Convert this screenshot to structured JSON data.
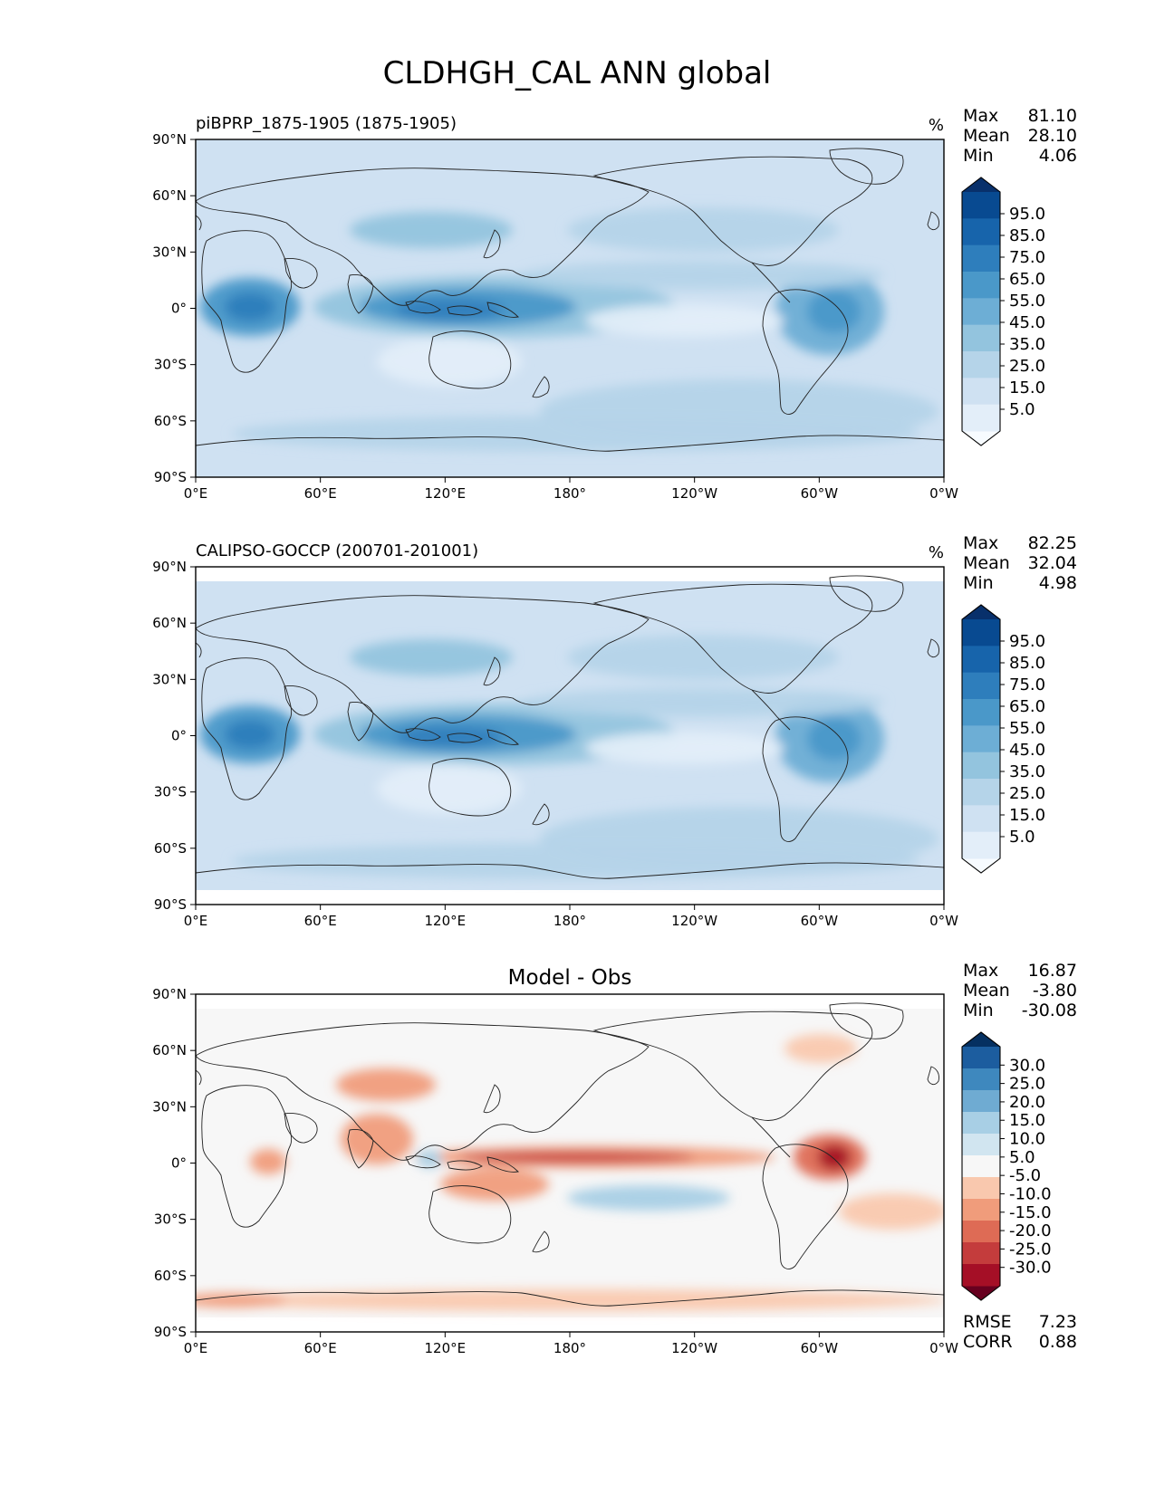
{
  "figure": {
    "title": "CLDHGH_CAL ANN global"
  },
  "chart_data": [
    {
      "type": "heatmap",
      "panel": "test",
      "title_left": "piBPRP_1875-1905 (1875-1905)",
      "units": "%",
      "stats": [
        {
          "label": "Max",
          "value": "81.10"
        },
        {
          "label": "Mean",
          "value": "28.10"
        },
        {
          "label": "Min",
          "value": "4.06"
        }
      ],
      "colormap": "Blues",
      "levels": [
        0,
        5,
        15,
        25,
        35,
        45,
        55,
        65,
        75,
        85,
        95,
        100
      ],
      "colorbar_labels": [
        "95.0",
        "85.0",
        "75.0",
        "65.0",
        "55.0",
        "45.0",
        "35.0",
        "25.0",
        "15.0",
        "5.0"
      ],
      "colors": [
        "#f7fbff",
        "#e3eef9",
        "#cfe1f2",
        "#b5d4e9",
        "#93c4de",
        "#6daed5",
        "#4a98c9",
        "#2e7ebc",
        "#1764ab",
        "#084a91",
        "#08306b"
      ],
      "x_ticks": [
        "0°E",
        "60°E",
        "120°E",
        "180°",
        "120°W",
        "60°W",
        "0°W"
      ],
      "y_ticks": [
        "90°N",
        "60°N",
        "30°N",
        "0°",
        "30°S",
        "60°S",
        "90°S"
      ]
    },
    {
      "type": "heatmap",
      "panel": "reference",
      "title_left": "CALIPSO-GOCCP (200701-201001)",
      "units": "%",
      "stats": [
        {
          "label": "Max",
          "value": "82.25"
        },
        {
          "label": "Mean",
          "value": "32.04"
        },
        {
          "label": "Min",
          "value": "4.98"
        }
      ],
      "colormap": "Blues",
      "levels": [
        0,
        5,
        15,
        25,
        35,
        45,
        55,
        65,
        75,
        85,
        95,
        100
      ],
      "colorbar_labels": [
        "95.0",
        "85.0",
        "75.0",
        "65.0",
        "55.0",
        "45.0",
        "35.0",
        "25.0",
        "15.0",
        "5.0"
      ],
      "colors": [
        "#f7fbff",
        "#e3eef9",
        "#cfe1f2",
        "#b5d4e9",
        "#93c4de",
        "#6daed5",
        "#4a98c9",
        "#2e7ebc",
        "#1764ab",
        "#084a91",
        "#08306b"
      ],
      "x_ticks": [
        "0°E",
        "60°E",
        "120°E",
        "180°",
        "120°W",
        "60°W",
        "0°W"
      ],
      "y_ticks": [
        "90°N",
        "60°N",
        "30°N",
        "0°",
        "30°S",
        "60°S",
        "90°S"
      ]
    },
    {
      "type": "heatmap",
      "panel": "difference",
      "title_center": "Model - Obs",
      "stats": [
        {
          "label": "Max",
          "value": "16.87"
        },
        {
          "label": "Mean",
          "value": "-3.80"
        },
        {
          "label": "Min",
          "value": "-30.08"
        }
      ],
      "extra_stats": [
        {
          "label": "RMSE",
          "value": "7.23"
        },
        {
          "label": "CORR",
          "value": "0.88"
        }
      ],
      "colormap": "RdBu",
      "levels": [
        -35,
        -30,
        -25,
        -20,
        -15,
        -10,
        -5,
        5,
        10,
        15,
        20,
        25,
        30,
        35
      ],
      "colorbar_labels": [
        "30.0",
        "25.0",
        "20.0",
        "15.0",
        "10.0",
        "5.0",
        "-5.0",
        "-10.0",
        "-15.0",
        "-20.0",
        "-25.0",
        "-30.0"
      ],
      "colors": [
        "#67001f",
        "#a50f26",
        "#c43c3c",
        "#de6b55",
        "#f09c7b",
        "#f9c8ae",
        "#f7f7f7",
        "#d1e5f0",
        "#a8cfe5",
        "#6fabd2",
        "#3e88be",
        "#1c5d9f",
        "#053061"
      ],
      "x_ticks": [
        "0°E",
        "60°E",
        "120°E",
        "180°",
        "120°W",
        "60°W",
        "0°W"
      ],
      "y_ticks": [
        "90°N",
        "60°N",
        "30°N",
        "0°",
        "30°S",
        "60°S",
        "90°S"
      ]
    }
  ]
}
